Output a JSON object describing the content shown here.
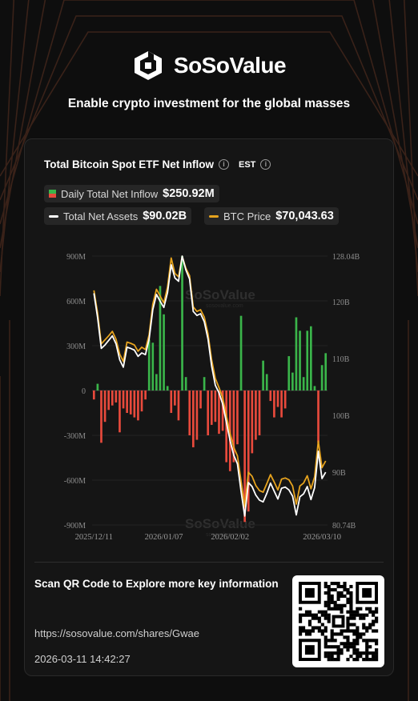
{
  "brand": {
    "name": "SoSoValue",
    "tagline": "Enable crypto investment for the global masses"
  },
  "card": {
    "title": "Total Bitcoin Spot ETF Net Inflow",
    "timezone": "EST",
    "legend": {
      "daily_net_inflow": {
        "label": "Daily Total Net Inflow",
        "value": "$250.92M"
      },
      "total_net_assets": {
        "label": "Total Net Assets",
        "value": "$90.02B",
        "color": "#ffffff"
      },
      "btc_price": {
        "label": "BTC Price",
        "value": "$70,043.63",
        "color": "#e6a31e"
      }
    },
    "watermark": "SoSoValue",
    "watermark_sub": "sosovalue.com"
  },
  "footer": {
    "scan_text": "Scan QR Code to Explore more key information",
    "url": "https://sosovalue.com/shares/Gwae",
    "timestamp": "2026-03-11 14:42:27"
  },
  "chart_data": {
    "type": "bar",
    "colors": {
      "positive": "#3ab54a",
      "negative": "#e84a3c",
      "assets_line": "#ffffff",
      "price_line": "#e6a31e"
    },
    "x_tick_labels": [
      "2025/12/11",
      "2026/01/07",
      "2026/02/02",
      "2026/03/10"
    ],
    "x_tick_indices": [
      0,
      19,
      37,
      62
    ],
    "left_axis": {
      "ticks": [
        "900M",
        "600M",
        "300M",
        "0",
        "-300M",
        "-600M",
        "-900M"
      ],
      "ylim": [
        -900,
        900
      ],
      "unit": "M"
    },
    "right_axis": {
      "ticks": [
        "128.04B",
        "120B",
        "110B",
        "100B",
        "90B",
        "80.74B"
      ],
      "tick_values": [
        128.04,
        120,
        110,
        100,
        90,
        80.74
      ],
      "ylim": [
        80.74,
        128.04
      ],
      "unit": "B"
    },
    "net_inflow_millions": [
      -60,
      45,
      -350,
      -210,
      -130,
      -100,
      -80,
      -280,
      -120,
      -150,
      -160,
      -180,
      -200,
      -140,
      -60,
      340,
      320,
      110,
      700,
      510,
      30,
      -150,
      -100,
      -200,
      900,
      90,
      -300,
      -380,
      -330,
      -120,
      90,
      -300,
      -230,
      -210,
      -290,
      -270,
      -480,
      -540,
      -480,
      -360,
      500,
      -880,
      -810,
      -420,
      -330,
      -300,
      200,
      110,
      -70,
      -180,
      -110,
      -180,
      -120,
      230,
      120,
      490,
      400,
      90,
      400,
      430,
      30,
      -350,
      170,
      250
    ],
    "total_net_assets_billions": [
      121.5,
      117.2,
      111.8,
      112.4,
      113.2,
      114.0,
      112.6,
      109.8,
      108.5,
      112.0,
      111.8,
      111.5,
      110.4,
      111.0,
      110.7,
      113.4,
      118.6,
      121.3,
      120.1,
      119.0,
      121.6,
      126.5,
      124.2,
      123.6,
      128.04,
      125.6,
      124.0,
      118.3,
      117.6,
      117.9,
      116.5,
      113.5,
      108.7,
      105.3,
      104.0,
      102.0,
      98.8,
      95.6,
      93.0,
      91.5,
      86.7,
      82.3,
      88.2,
      87.5,
      86.0,
      85.1,
      84.8,
      86.3,
      88.1,
      86.7,
      85.3,
      87.2,
      87.4,
      86.9,
      85.8,
      82.5,
      85.7,
      86.2,
      87.5,
      85.2,
      87.3,
      93.7,
      88.9,
      90.02
    ],
    "btc_price_relative_axis_billions": [
      122.0,
      118.0,
      112.6,
      113.3,
      114.0,
      114.8,
      113.4,
      110.8,
      109.5,
      112.9,
      112.7,
      112.4,
      111.3,
      112.0,
      111.6,
      114.2,
      119.6,
      122.2,
      121.0,
      119.8,
      122.6,
      127.7,
      125.0,
      124.4,
      128.0,
      125.9,
      124.6,
      119.1,
      118.3,
      118.6,
      117.3,
      114.4,
      109.8,
      106.5,
      104.9,
      103.1,
      100.0,
      96.9,
      94.4,
      92.9,
      88.5,
      84.0,
      90.0,
      89.3,
      87.7,
      86.8,
      86.5,
      88.0,
      89.6,
      88.3,
      86.9,
      88.8,
      89.0,
      88.7,
      87.6,
      84.4,
      87.6,
      88.1,
      89.4,
      87.1,
      89.2,
      95.5,
      90.8,
      92.0
    ]
  }
}
